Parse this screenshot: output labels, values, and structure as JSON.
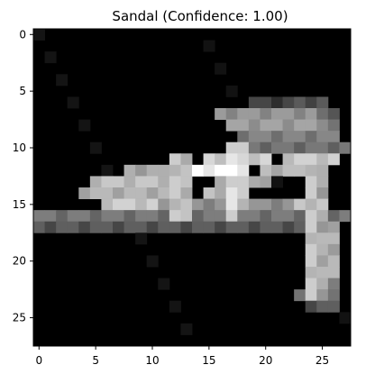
{
  "title": "Sandal (Confidence: 1.00)",
  "image": {
    "type": "grayscale-pixel-grid",
    "width": 28,
    "height": 28,
    "colormap": "gray",
    "background_color": "#000000"
  },
  "axes": {
    "x_ticks": [
      0,
      5,
      10,
      15,
      20,
      25
    ],
    "y_ticks": [
      0,
      5,
      10,
      15,
      20,
      25
    ],
    "x_range": [
      -0.5,
      27.5
    ],
    "y_range": [
      -0.5,
      27.5
    ]
  }
}
